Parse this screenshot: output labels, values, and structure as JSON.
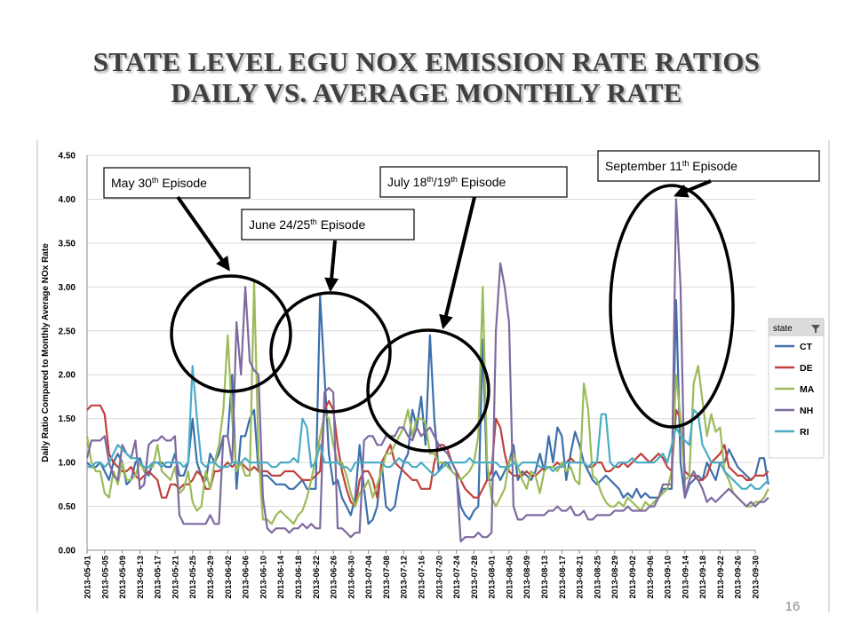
{
  "slide": {
    "title_line1": "STATE LEVEL EGU NOX EMISSION RATE RATIOS",
    "title_line2": "DAILY VS. AVERAGE MONTHLY RATE",
    "page_number": "16"
  },
  "callouts": {
    "may": [
      "May 30",
      "th",
      " Episode"
    ],
    "june": [
      "June 24/25",
      "th",
      " Episode"
    ],
    "july": [
      "July 18",
      "th",
      "/19",
      "th",
      " Episode"
    ],
    "sept": [
      "September 11",
      "th",
      " Episode"
    ]
  },
  "chart_data": {
    "type": "line",
    "title": "",
    "xlabel": "",
    "ylabel": "Daily Ratio Compared to Monthly  Average NOx Rate",
    "ylim": [
      0,
      4.5
    ],
    "yticks": [
      "0.00",
      "0.50",
      "1.00",
      "1.50",
      "2.00",
      "2.50",
      "3.00",
      "3.50",
      "4.00",
      "4.50"
    ],
    "x_start": "2013-05-01",
    "x_end": "2013-09-30",
    "x_tick_labels": [
      "2013-05-01",
      "2013-05-05",
      "2013-05-09",
      "2013-05-13",
      "2013-05-17",
      "2013-05-21",
      "2013-05-25",
      "2013-05-29",
      "2013-06-02",
      "2013-06-06",
      "2013-06-10",
      "2013-06-14",
      "2013-06-18",
      "2013-06-22",
      "2013-06-26",
      "2013-06-30",
      "2013-07-04",
      "2013-07-08",
      "2013-07-12",
      "2013-07-16",
      "2013-07-20",
      "2013-07-24",
      "2013-07-28",
      "2013-08-01",
      "2013-08-05",
      "2013-08-09",
      "2013-08-13",
      "2013-08-17",
      "2013-08-21",
      "2013-08-25",
      "2013-08-29",
      "2013-09-02",
      "2013-09-06",
      "2013-09-10",
      "2013-09-14",
      "2013-09-18",
      "2013-09-22",
      "2013-09-26",
      "2013-09-30"
    ],
    "legend_title": "state",
    "legend_position": "right",
    "grid": "horizontal",
    "series": [
      {
        "name": "CT",
        "color": "#3d6fac",
        "values": [
          1.0,
          0.95,
          0.95,
          1.0,
          0.9,
          0.8,
          1.0,
          1.1,
          1.0,
          0.75,
          0.8,
          1.0,
          1.05,
          0.9,
          0.85,
          1.0,
          1.0,
          1.0,
          0.95,
          0.95,
          1.1,
          0.85,
          0.85,
          1.0,
          1.5,
          1.0,
          0.85,
          0.8,
          1.1,
          1.0,
          1.1,
          1.3,
          1.3,
          2.0,
          0.7,
          1.3,
          1.3,
          1.5,
          1.6,
          0.9,
          0.85,
          0.85,
          0.8,
          0.75,
          0.75,
          0.75,
          0.7,
          0.7,
          0.75,
          0.8,
          0.7,
          0.7,
          0.7,
          2.9,
          2.0,
          1.1,
          0.75,
          0.8,
          0.6,
          0.5,
          0.4,
          0.6,
          1.2,
          0.7,
          0.3,
          0.35,
          0.5,
          1.0,
          0.5,
          0.45,
          0.5,
          0.8,
          1.0,
          1.1,
          1.6,
          1.4,
          1.75,
          1.2,
          2.45,
          1.5,
          0.9,
          1.0,
          1.0,
          0.9,
          0.85,
          0.5,
          0.4,
          0.35,
          0.45,
          0.5,
          2.4,
          0.8,
          0.8,
          0.9,
          0.8,
          0.9,
          1.0,
          1.2,
          0.8,
          0.9,
          0.85,
          0.8,
          0.9,
          1.1,
          0.9,
          1.3,
          1.0,
          1.4,
          1.3,
          0.8,
          1.1,
          1.35,
          1.2,
          1.0,
          0.9,
          0.8,
          0.75,
          0.8,
          0.85,
          0.8,
          0.75,
          0.7,
          0.6,
          0.65,
          0.6,
          0.7,
          0.6,
          0.65,
          0.6,
          0.6,
          0.6,
          0.7,
          0.7,
          0.7,
          2.85,
          1.0,
          0.6,
          0.75,
          0.8,
          0.85,
          0.8,
          1.0,
          0.9,
          0.8,
          1.0,
          1.0,
          1.15,
          1.05,
          0.95,
          0.9,
          0.85,
          0.8,
          0.85,
          1.05,
          1.05,
          0.75
        ]
      },
      {
        "name": "DE",
        "color": "#c0413c",
        "values": [
          1.6,
          1.65,
          1.65,
          1.65,
          1.55,
          1.1,
          1.0,
          0.95,
          0.9,
          0.9,
          0.95,
          0.85,
          0.8,
          0.85,
          0.9,
          0.85,
          0.8,
          0.6,
          0.6,
          0.75,
          0.75,
          0.7,
          0.75,
          0.75,
          0.8,
          0.9,
          0.85,
          0.7,
          0.7,
          0.9,
          0.9,
          0.95,
          1.0,
          0.95,
          1.0,
          1.0,
          0.95,
          0.9,
          0.95,
          0.9,
          0.9,
          0.9,
          0.85,
          0.85,
          0.85,
          0.9,
          0.9,
          0.9,
          0.85,
          0.8,
          0.8,
          0.8,
          0.85,
          0.9,
          1.6,
          1.7,
          1.6,
          1.2,
          0.9,
          0.7,
          0.55,
          0.5,
          0.8,
          0.9,
          0.9,
          0.8,
          0.6,
          1.0,
          1.1,
          1.2,
          1.0,
          0.95,
          0.9,
          0.85,
          0.8,
          0.8,
          0.7,
          0.7,
          0.7,
          1.0,
          1.2,
          1.2,
          1.15,
          1.0,
          0.9,
          0.8,
          0.7,
          0.65,
          0.6,
          0.6,
          0.7,
          0.8,
          0.9,
          1.5,
          1.4,
          1.1,
          0.9,
          0.85,
          0.85,
          0.85,
          0.9,
          0.85,
          0.85,
          0.9,
          0.95,
          0.95,
          0.95,
          1.0,
          0.95,
          1.0,
          1.05,
          1.0,
          1.0,
          1.0,
          0.95,
          0.95,
          1.0,
          1.0,
          0.9,
          0.9,
          0.95,
          0.95,
          1.0,
          0.95,
          1.0,
          1.05,
          1.1,
          1.05,
          1.0,
          1.05,
          1.1,
          1.05,
          0.95,
          0.9,
          1.6,
          1.5,
          0.9,
          0.85,
          0.85,
          0.8,
          0.8,
          0.85,
          1.0,
          1.05,
          1.1,
          1.2,
          0.95,
          0.9,
          0.85,
          0.85,
          0.8,
          0.8,
          0.85,
          0.85,
          0.85,
          0.9
        ]
      },
      {
        "name": "MA",
        "color": "#9bbb59",
        "values": [
          1.3,
          1.0,
          0.9,
          0.9,
          0.65,
          0.6,
          0.9,
          0.75,
          1.0,
          0.8,
          0.8,
          0.85,
          1.0,
          0.9,
          0.95,
          0.95,
          1.2,
          0.9,
          0.85,
          0.8,
          0.95,
          0.65,
          0.7,
          0.9,
          0.55,
          0.45,
          0.5,
          0.9,
          0.7,
          1.0,
          1.2,
          1.6,
          2.45,
          1.5,
          0.9,
          1.0,
          0.85,
          0.85,
          3.05,
          1.1,
          0.35,
          0.35,
          0.3,
          0.4,
          0.45,
          0.4,
          0.35,
          0.3,
          0.4,
          0.45,
          0.6,
          0.8,
          1.05,
          1.3,
          1.55,
          1.5,
          1.2,
          1.0,
          1.0,
          0.85,
          0.65,
          0.5,
          0.65,
          0.7,
          0.8,
          0.6,
          0.75,
          0.9,
          1.1,
          1.1,
          1.2,
          1.3,
          1.4,
          1.6,
          1.3,
          1.5,
          1.5,
          1.45,
          1.1,
          1.1,
          1.0,
          1.0,
          0.95,
          0.9,
          0.85,
          0.8,
          0.85,
          0.9,
          1.0,
          1.3,
          3.0,
          1.0,
          0.6,
          0.5,
          0.6,
          0.7,
          1.0,
          1.1,
          0.95,
          0.8,
          0.7,
          0.9,
          0.85,
          0.65,
          0.9,
          0.95,
          0.95,
          0.9,
          1.0,
          0.9,
          0.95,
          0.8,
          0.75,
          1.9,
          1.6,
          0.85,
          0.8,
          0.65,
          0.55,
          0.5,
          0.5,
          0.55,
          0.5,
          0.6,
          0.55,
          0.5,
          0.45,
          0.55,
          0.5,
          0.55,
          0.6,
          0.65,
          0.7,
          0.9,
          2.0,
          1.5,
          0.8,
          0.85,
          1.9,
          2.1,
          1.7,
          1.3,
          1.55,
          1.35,
          1.4,
          0.9,
          0.8,
          0.65,
          0.6,
          0.55,
          0.5,
          0.5,
          0.55,
          0.55,
          0.6,
          0.7
        ]
      },
      {
        "name": "NH",
        "color": "#7f6a9f",
        "values": [
          1.05,
          1.25,
          1.25,
          1.25,
          1.3,
          1.0,
          0.85,
          0.8,
          1.2,
          1.1,
          1.05,
          1.25,
          0.7,
          0.75,
          1.2,
          1.25,
          1.25,
          1.3,
          1.25,
          1.25,
          1.3,
          0.4,
          0.3,
          0.3,
          0.3,
          0.3,
          0.3,
          0.3,
          0.4,
          0.3,
          0.3,
          1.3,
          1.3,
          1.0,
          2.6,
          2.0,
          3.0,
          2.15,
          2.05,
          2.0,
          0.6,
          0.25,
          0.2,
          0.25,
          0.25,
          0.25,
          0.2,
          0.25,
          0.25,
          0.3,
          0.25,
          0.3,
          0.25,
          0.25,
          1.8,
          1.85,
          1.8,
          0.25,
          0.25,
          0.2,
          0.15,
          0.2,
          0.2,
          1.25,
          1.3,
          1.3,
          1.2,
          1.2,
          1.3,
          1.3,
          1.3,
          1.4,
          1.4,
          1.3,
          1.25,
          1.4,
          1.3,
          1.35,
          1.4,
          1.3,
          1.2,
          1.15,
          1.1,
          1.0,
          0.9,
          0.1,
          0.15,
          0.15,
          0.15,
          0.2,
          0.15,
          0.15,
          0.2,
          2.5,
          3.27,
          3.0,
          2.6,
          0.5,
          0.35,
          0.35,
          0.4,
          0.4,
          0.4,
          0.4,
          0.4,
          0.45,
          0.45,
          0.5,
          0.45,
          0.45,
          0.5,
          0.4,
          0.4,
          0.45,
          0.35,
          0.35,
          0.4,
          0.4,
          0.4,
          0.4,
          0.45,
          0.45,
          0.45,
          0.5,
          0.45,
          0.45,
          0.45,
          0.45,
          0.5,
          0.5,
          0.6,
          0.75,
          0.75,
          0.75,
          4.0,
          3.0,
          0.6,
          0.8,
          0.9,
          0.8,
          0.7,
          0.55,
          0.6,
          0.55,
          0.6,
          0.65,
          0.7,
          0.65,
          0.6,
          0.55,
          0.5,
          0.55,
          0.5,
          0.55,
          0.55,
          0.6
        ]
      },
      {
        "name": "RI",
        "color": "#4bacc6",
        "values": [
          0.95,
          0.95,
          1.0,
          1.0,
          0.95,
          1.0,
          1.1,
          1.2,
          1.15,
          1.1,
          1.05,
          1.05,
          1.0,
          0.95,
          0.95,
          1.0,
          1.0,
          0.95,
          1.0,
          1.0,
          1.0,
          1.0,
          0.95,
          1.0,
          2.1,
          1.5,
          1.0,
          0.95,
          1.0,
          1.0,
          0.95,
          0.95,
          0.95,
          1.0,
          1.0,
          1.0,
          1.05,
          1.0,
          1.0,
          1.0,
          1.0,
          1.0,
          0.95,
          0.95,
          1.0,
          1.0,
          1.0,
          1.05,
          1.0,
          1.5,
          1.4,
          0.95,
          1.0,
          1.2,
          1.0,
          1.0,
          1.0,
          1.0,
          0.95,
          0.95,
          0.9,
          1.0,
          1.0,
          1.0,
          1.0,
          1.0,
          1.0,
          1.0,
          0.95,
          0.95,
          1.0,
          1.05,
          1.0,
          1.0,
          0.95,
          0.95,
          1.0,
          0.95,
          0.9,
          0.85,
          0.9,
          0.95,
          1.0,
          1.0,
          1.0,
          1.0,
          1.0,
          1.05,
          1.0,
          1.0,
          1.0,
          1.0,
          1.0,
          1.0,
          0.95,
          0.95,
          0.95,
          1.0,
          0.95,
          1.0,
          1.0,
          1.0,
          1.0,
          0.95,
          0.95,
          0.95,
          0.9,
          0.95,
          0.95,
          1.0,
          1.0,
          1.0,
          1.0,
          1.0,
          0.95,
          1.0,
          1.0,
          1.55,
          1.55,
          1.0,
          0.95,
          1.0,
          1.0,
          1.0,
          1.05,
          1.0,
          1.0,
          1.0,
          1.0,
          1.0,
          1.05,
          1.1,
          1.0,
          1.2,
          1.4,
          1.3,
          1.25,
          1.2,
          1.6,
          1.55,
          1.2,
          1.1,
          1.0,
          1.0,
          1.0,
          0.9,
          0.85,
          0.8,
          0.75,
          0.7,
          0.7,
          0.75,
          0.7,
          0.7,
          0.75,
          0.8
        ]
      }
    ]
  }
}
